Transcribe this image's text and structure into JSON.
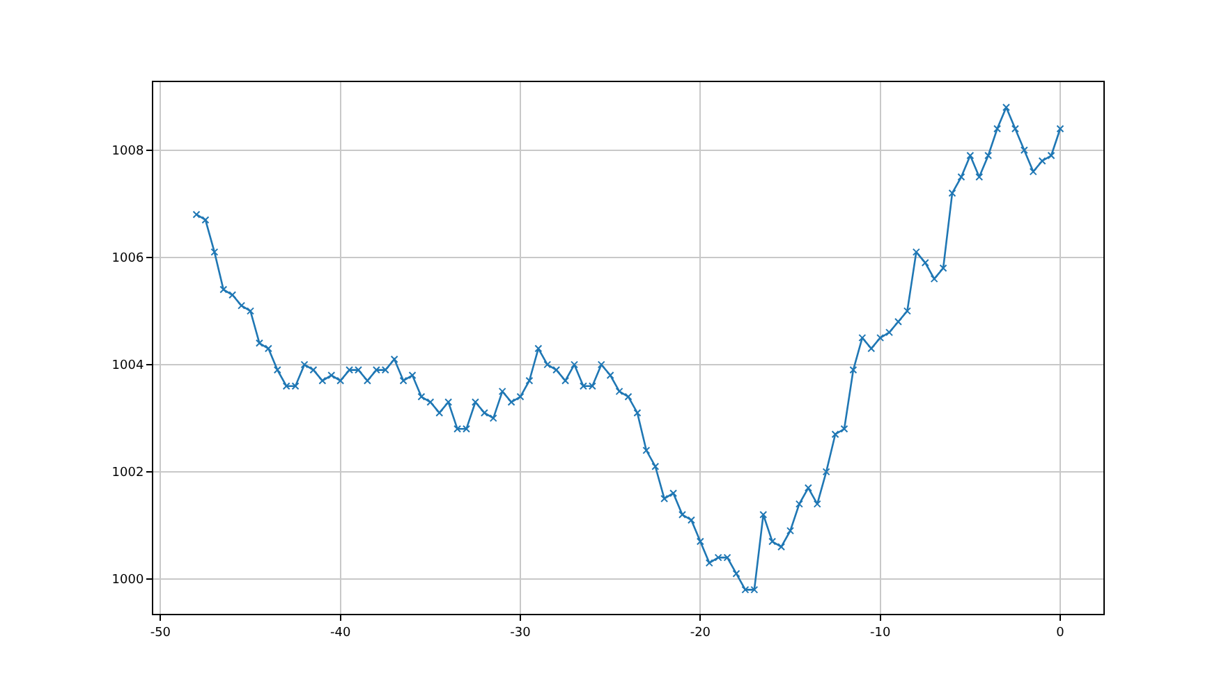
{
  "chart_data": {
    "type": "line",
    "x": [
      -48,
      -47.5,
      -47,
      -46.5,
      -46,
      -45.5,
      -45,
      -44.5,
      -44,
      -43.5,
      -43,
      -42.5,
      -42,
      -41.5,
      -41,
      -40.5,
      -40,
      -39.5,
      -39,
      -38.5,
      -38,
      -37.5,
      -37,
      -36.5,
      -36,
      -35.5,
      -35,
      -34.5,
      -34,
      -33.5,
      -33,
      -32.5,
      -32,
      -31.5,
      -31,
      -30.5,
      -30,
      -29.5,
      -29,
      -28.5,
      -28,
      -27.5,
      -27,
      -26.5,
      -26,
      -25.5,
      -25,
      -24.5,
      -24,
      -23.5,
      -23,
      -22.5,
      -22,
      -21.5,
      -21,
      -20.5,
      -20,
      -19.5,
      -19,
      -18.5,
      -18,
      -17.5,
      -17,
      -16.5,
      -16,
      -15.5,
      -15,
      -14.5,
      -14,
      -13.5,
      -13,
      -12.5,
      -12,
      -11.5,
      -11,
      -10.5,
      -10,
      -9.5,
      -9,
      -8.5,
      -8,
      -7.5,
      -7,
      -6.5,
      -6,
      -5.5,
      -5,
      -4.5,
      -4,
      -3.5,
      -3,
      -2.5,
      -2,
      -1.5,
      -1,
      -0.5,
      0
    ],
    "series": [
      {
        "color": "#1f77b4",
        "values": [
          1006.8,
          1006.7,
          1006.1,
          1005.4,
          1005.3,
          1005.1,
          1005.0,
          1004.4,
          1004.3,
          1003.9,
          1003.6,
          1003.6,
          1004.0,
          1003.9,
          1003.7,
          1003.8,
          1003.7,
          1003.9,
          1003.9,
          1003.7,
          1003.9,
          1003.9,
          1004.1,
          1003.7,
          1003.8,
          1003.4,
          1003.3,
          1003.1,
          1003.3,
          1002.8,
          1002.8,
          1003.3,
          1003.1,
          1003.0,
          1003.5,
          1003.3,
          1003.4,
          1003.7,
          1004.3,
          1004.0,
          1003.9,
          1003.7,
          1004.0,
          1003.6,
          1003.6,
          1004.0,
          1003.8,
          1003.5,
          1003.4,
          1003.1,
          1002.4,
          1002.1,
          1001.5,
          1001.6,
          1001.2,
          1001.1,
          1000.7,
          1000.3,
          1000.4,
          1000.4,
          1000.1,
          999.8,
          999.8,
          1001.2,
          1000.7,
          1000.6,
          1000.9,
          1001.4,
          1001.7,
          1001.4,
          1002.0,
          1002.7,
          1002.8,
          1003.9,
          1004.5,
          1004.3,
          1004.5,
          1004.6,
          1004.8,
          1005.0,
          1006.1,
          1005.9,
          1005.6,
          1005.8,
          1007.2,
          1007.5,
          1007.9,
          1007.5,
          1007.9,
          1008.4,
          1008.8,
          1008.4,
          1008.0,
          1007.6,
          1007.8,
          1007.9,
          1008.4
        ]
      }
    ],
    "xlim": [
      -50.4,
      2.4
    ],
    "ylim": [
      999.35,
      1009.27
    ],
    "xticks": [
      -50,
      -40,
      -30,
      -20,
      -10,
      0
    ],
    "yticks": [
      1000,
      1002,
      1004,
      1006,
      1008
    ],
    "grid": true,
    "marker": "cross",
    "line_style": "solid"
  }
}
